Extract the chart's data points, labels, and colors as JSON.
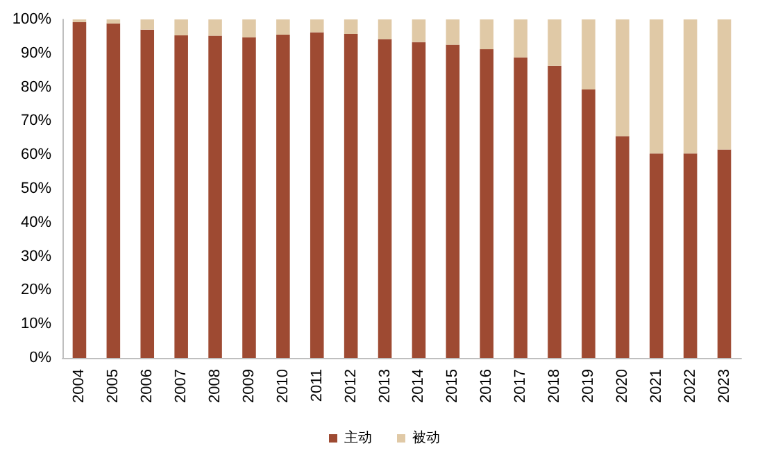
{
  "chart_data": {
    "type": "bar",
    "stacked": true,
    "categories": [
      "2004",
      "2005",
      "2006",
      "2007",
      "2008",
      "2009",
      "2010",
      "2011",
      "2012",
      "2013",
      "2014",
      "2015",
      "2016",
      "2017",
      "2018",
      "2019",
      "2020",
      "2021",
      "2022",
      "2023"
    ],
    "series": [
      {
        "name": "主动",
        "color": "#9e4a32",
        "values": [
          99.2,
          98.8,
          97.0,
          95.3,
          95.2,
          94.7,
          95.5,
          96.2,
          95.7,
          94.2,
          93.3,
          92.5,
          91.2,
          88.8,
          86.3,
          79.3,
          65.5,
          60.4,
          60.4,
          61.6
        ]
      },
      {
        "name": "被动",
        "color": "#e0c9a6",
        "values": [
          0.8,
          1.2,
          3.0,
          4.7,
          4.8,
          5.3,
          4.5,
          3.8,
          4.3,
          5.8,
          6.7,
          7.5,
          8.8,
          11.2,
          13.7,
          20.7,
          34.5,
          39.6,
          39.6,
          38.4
        ]
      }
    ],
    "ylim": [
      0,
      100
    ],
    "yticks": [
      {
        "value": 0,
        "label": "0%"
      },
      {
        "value": 10,
        "label": "10%"
      },
      {
        "value": 20,
        "label": "20%"
      },
      {
        "value": 30,
        "label": "30%"
      },
      {
        "value": 40,
        "label": "40%"
      },
      {
        "value": 50,
        "label": "50%"
      },
      {
        "value": 60,
        "label": "60%"
      },
      {
        "value": 70,
        "label": "70%"
      },
      {
        "value": 80,
        "label": "80%"
      },
      {
        "value": 90,
        "label": "90%"
      },
      {
        "value": 100,
        "label": "100%"
      }
    ],
    "grid": false,
    "legend": "bottom"
  }
}
